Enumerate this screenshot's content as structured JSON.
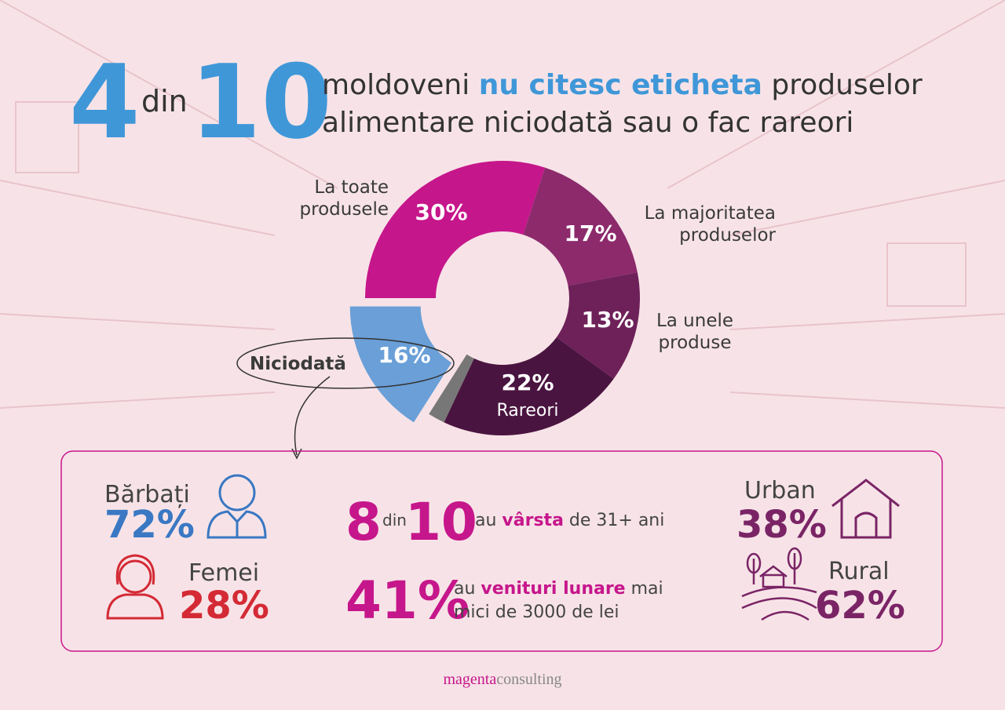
{
  "header": {
    "big_a": "4",
    "small": "din",
    "big_b": "10",
    "line1": [
      "moldoveni ",
      "nu citesc eticheta",
      " produselor"
    ],
    "line2": "alimentare niciodată sau o fac rareori"
  },
  "chart_data": {
    "type": "pie",
    "categories": [
      "La toate produsele",
      "La majoritatea produselor",
      "La unele produse",
      "Rareori",
      null,
      "Niciodată"
    ],
    "values": [
      30,
      17,
      13,
      22,
      2,
      16
    ],
    "value_labels": [
      "30%",
      "17%",
      "13%",
      "22%",
      null,
      "16%"
    ],
    "colors": [
      "#c6168b",
      "#8c2a6c",
      "#6e2159",
      "#4a1440",
      "#777777",
      "#6a9fd8"
    ]
  },
  "panel": {
    "men_label": "Bărbați",
    "men_value": "72%",
    "women_label": "Femei",
    "women_value": "28%",
    "age_a": "8",
    "age_small": "din",
    "age_b": "10",
    "age_text": [
      "au ",
      "vârsta",
      " de 31+ ani"
    ],
    "income_value": "41%",
    "income_text": [
      "au ",
      "venituri lunare",
      " mai"
    ],
    "income_text2": "mici de 3000 de lei",
    "urban_label": "Urban",
    "urban_value": "38%",
    "rural_label": "Rural",
    "rural_value": "62%"
  },
  "footer": [
    "magenta",
    "consulting"
  ]
}
